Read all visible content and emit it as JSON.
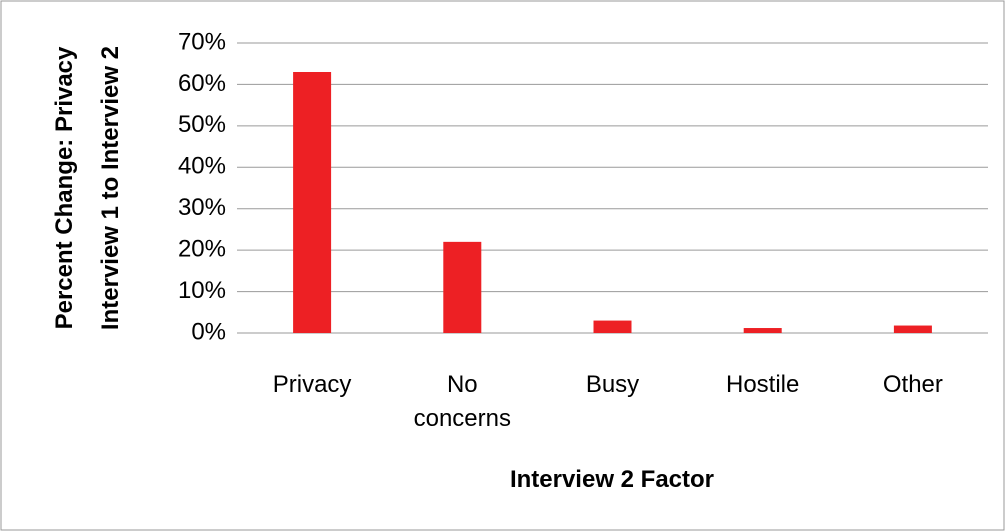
{
  "chart_data": {
    "type": "bar",
    "y_label": "Percent Change: Privacy Interview 1 to Interview 2",
    "x_label": "Interview 2 Factor",
    "categories": [
      "Privacy",
      "No concerns",
      "Busy",
      "Hostile",
      "Other"
    ],
    "values": [
      63,
      22,
      3,
      1.2,
      1.8
    ],
    "color": "#ed2024",
    "ylim": [
      0,
      70
    ],
    "yticks": [
      {
        "value": 0,
        "label": "0%"
      },
      {
        "value": 10,
        "label": "10%"
      },
      {
        "value": 20,
        "label": "20%"
      },
      {
        "value": 30,
        "label": "30%"
      },
      {
        "value": 40,
        "label": "40%"
      },
      {
        "value": 50,
        "label": "50%"
      },
      {
        "value": 60,
        "label": "60%"
      },
      {
        "value": 70,
        "label": "70%"
      }
    ],
    "grid": true
  }
}
